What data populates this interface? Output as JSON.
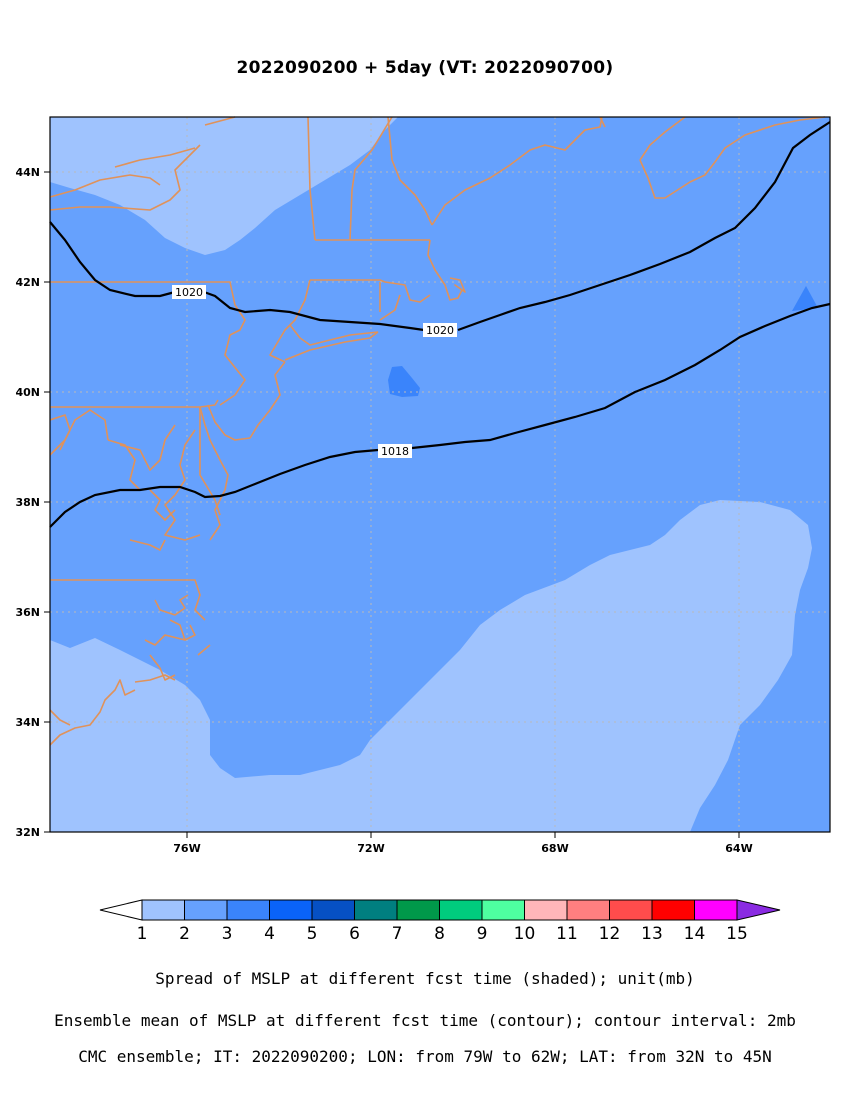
{
  "title": "2022090200 + 5day (VT: 2022090700)",
  "map": {
    "lon_range": [
      -79.5,
      -62
    ],
    "lat_range": [
      32,
      45
    ],
    "x_ticks": [
      {
        "lon": -76,
        "label": "76W"
      },
      {
        "lon": -72,
        "label": "72W"
      },
      {
        "lon": -68,
        "label": "68W"
      },
      {
        "lon": -64,
        "label": "64W"
      }
    ],
    "y_ticks": [
      {
        "lat": 44,
        "label": "44N"
      },
      {
        "lat": 42,
        "label": "42N"
      },
      {
        "lat": 40,
        "label": "40N"
      },
      {
        "lat": 38,
        "label": "38N"
      },
      {
        "lat": 36,
        "label": "36N"
      },
      {
        "lat": 34,
        "label": "34N"
      },
      {
        "lat": 32,
        "label": "32N"
      }
    ],
    "grid": true,
    "shading_colors": {
      "spread_1_2": "#9fc3fe",
      "spread_2_3": "#66a1fd",
      "spread_3_4": "#3a84fb"
    },
    "coastline_color": "#e0925a",
    "contours": [
      {
        "label": "1020"
      },
      {
        "label": "1018"
      }
    ]
  },
  "colorbar": {
    "levels": [
      "1",
      "2",
      "3",
      "4",
      "5",
      "6",
      "7",
      "8",
      "9",
      "10",
      "11",
      "12",
      "13",
      "14",
      "15"
    ],
    "colors": [
      "#9fc3fe",
      "#66a1fd",
      "#3a84fb",
      "#0a63f8",
      "#0650c4",
      "#007f80",
      "#00994a",
      "#00cc7e",
      "#4effa0",
      "#ffb6b9",
      "#ff7f80",
      "#ff4c4c",
      "#ff0000",
      "#ff00ff",
      "#8a2be2"
    ],
    "under_color": "#ffffff",
    "over_color": "#8a2be2"
  },
  "captions": {
    "line1": "Spread of MSLP at different fcst time (shaded); unit(mb)",
    "line2": "Ensemble mean of MSLP at different fcst time (contour); contour interval: 2mb",
    "line3": "CMC ensemble; IT: 2022090200; LON: from 79W to 62W; LAT: from 32N to 45N"
  }
}
